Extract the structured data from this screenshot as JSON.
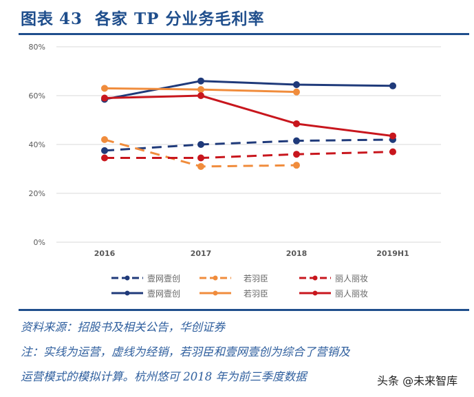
{
  "header": {
    "figure_label": "图表",
    "figure_number": "43",
    "title": "各家 TP 分业务毛利率"
  },
  "chart_data": {
    "type": "line",
    "title": "各家 TP 分业务毛利率",
    "categories": [
      "2016",
      "2017",
      "2018",
      "2019H1"
    ],
    "xlabel": "",
    "ylabel": "",
    "ylim": [
      0,
      80
    ],
    "yticks": [
      "0%",
      "20%",
      "40%",
      "60%",
      "80%"
    ],
    "grid": true,
    "legend_position": "bottom",
    "series": [
      {
        "name": "壹网壹创",
        "style": "dashed",
        "note": "经销",
        "color": "#1f3a7a",
        "values": [
          37.5,
          40,
          41.5,
          42
        ]
      },
      {
        "name": "若羽臣",
        "style": "dashed",
        "note": "经销",
        "color": "#f08c3c",
        "values": [
          42,
          31,
          31.5,
          null
        ]
      },
      {
        "name": "丽人丽妆",
        "style": "dashed",
        "note": "经销",
        "color": "#c8161d",
        "values": [
          34.5,
          34.5,
          36,
          37
        ]
      },
      {
        "name": "壹网壹创",
        "style": "solid",
        "note": "运营",
        "color": "#1f3a7a",
        "values": [
          58.5,
          66,
          64.5,
          64
        ]
      },
      {
        "name": "若羽臣",
        "style": "solid",
        "note": "运营",
        "color": "#f08c3c",
        "values": [
          63,
          62.5,
          61.5,
          null
        ]
      },
      {
        "name": "丽人丽妆",
        "style": "solid",
        "note": "运营",
        "color": "#c8161d",
        "values": [
          59,
          60,
          48.5,
          43.5
        ]
      }
    ]
  },
  "legend": {
    "rows": [
      [
        {
          "label": "壹网壹创"
        },
        {
          "label": "若羽臣"
        },
        {
          "label": "丽人丽妆"
        }
      ],
      [
        {
          "label": "壹网壹创"
        },
        {
          "label": "若羽臣"
        },
        {
          "label": "丽人丽妆"
        }
      ]
    ]
  },
  "footer": {
    "source": "资料来源：招股书及相关公告，华创证券",
    "note_line1": "注：实线为运营，虚线为经销，若羽臣和壹网壹创为综合了营销及",
    "note_line2": "运营模式的模拟计算。杭州悠可 2018 年为前三季度数据"
  },
  "watermark": "头条 @未来智库"
}
